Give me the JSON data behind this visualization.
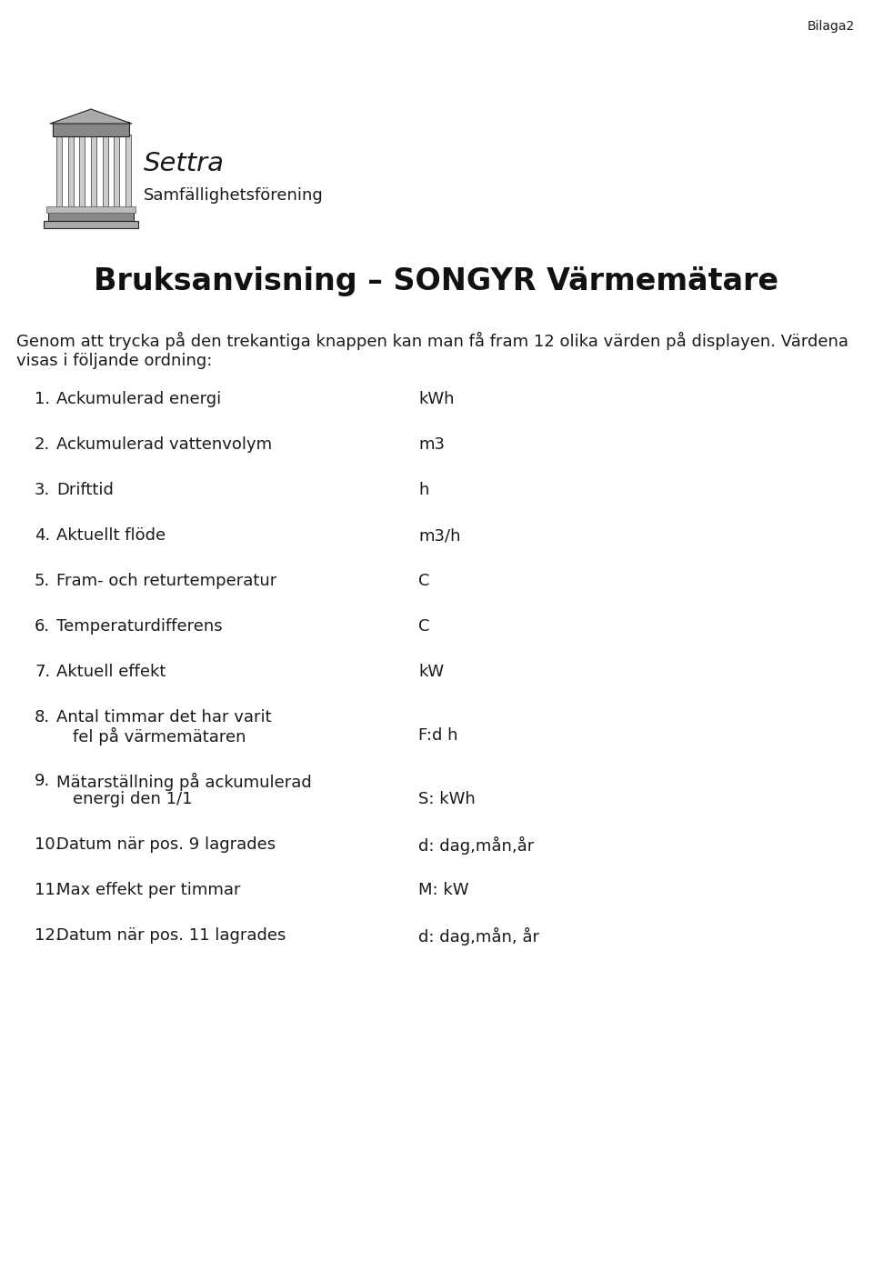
{
  "bilaga_text": "Bilaga2",
  "title": "Bruksanvisning – SONGYR Värmemätare",
  "intro_line1": "Genom att trycka på den trekantiga knappen kan man få fram 12 olika värden på displayen. Värdena",
  "intro_line2": "visas i följande ordning:",
  "logo_text_line1": "Settra",
  "logo_text_line2": "Samfällighetsförening",
  "items": [
    {
      "num": "1.",
      "left": "Ackumulerad energi",
      "left2": "",
      "right": "kWh",
      "multiline": false
    },
    {
      "num": "2.",
      "left": "Ackumulerad vattenvolym",
      "left2": "",
      "right": "m3",
      "multiline": false
    },
    {
      "num": "3.",
      "left": "Drifttid",
      "left2": "",
      "right": "h",
      "multiline": false
    },
    {
      "num": "4.",
      "left": "Aktuellt flöde",
      "left2": "",
      "right": "m3/h",
      "multiline": false
    },
    {
      "num": "5.",
      "left": "Fram- och returtemperatur",
      "left2": "",
      "right": "C",
      "multiline": false
    },
    {
      "num": "6.",
      "left": "Temperaturdifferens",
      "left2": "",
      "right": "C",
      "multiline": false
    },
    {
      "num": "7.",
      "left": "Aktuell effekt",
      "left2": "",
      "right": "kW",
      "multiline": false
    },
    {
      "num": "8.",
      "left": "Antal timmar det har varit",
      "left2": "fel på värmemätaren",
      "right": "F:d h",
      "multiline": true
    },
    {
      "num": "9.",
      "left": "Mätarställning på ackumulerad",
      "left2": "energi den 1/1",
      "right": "S: kWh",
      "multiline": true
    },
    {
      "num": "10.",
      "left": "Datum när pos. 9 lagrades",
      "left2": "",
      "right": "d: dag,mån,år",
      "multiline": false
    },
    {
      "num": "11.",
      "left": "Max effekt per timmar",
      "left2": "",
      "right": "M: kW",
      "multiline": false
    },
    {
      "num": "12.",
      "left": "Datum när pos. 11 lagrades",
      "left2": "",
      "right": "d: dag,mån, år",
      "multiline": false
    }
  ],
  "background_color": "#ffffff",
  "text_color": "#1a1a1a",
  "title_fontsize": 24,
  "body_fontsize": 13,
  "bilaga_fontsize": 10,
  "logo_fontsize1": 21,
  "logo_fontsize2": 13
}
